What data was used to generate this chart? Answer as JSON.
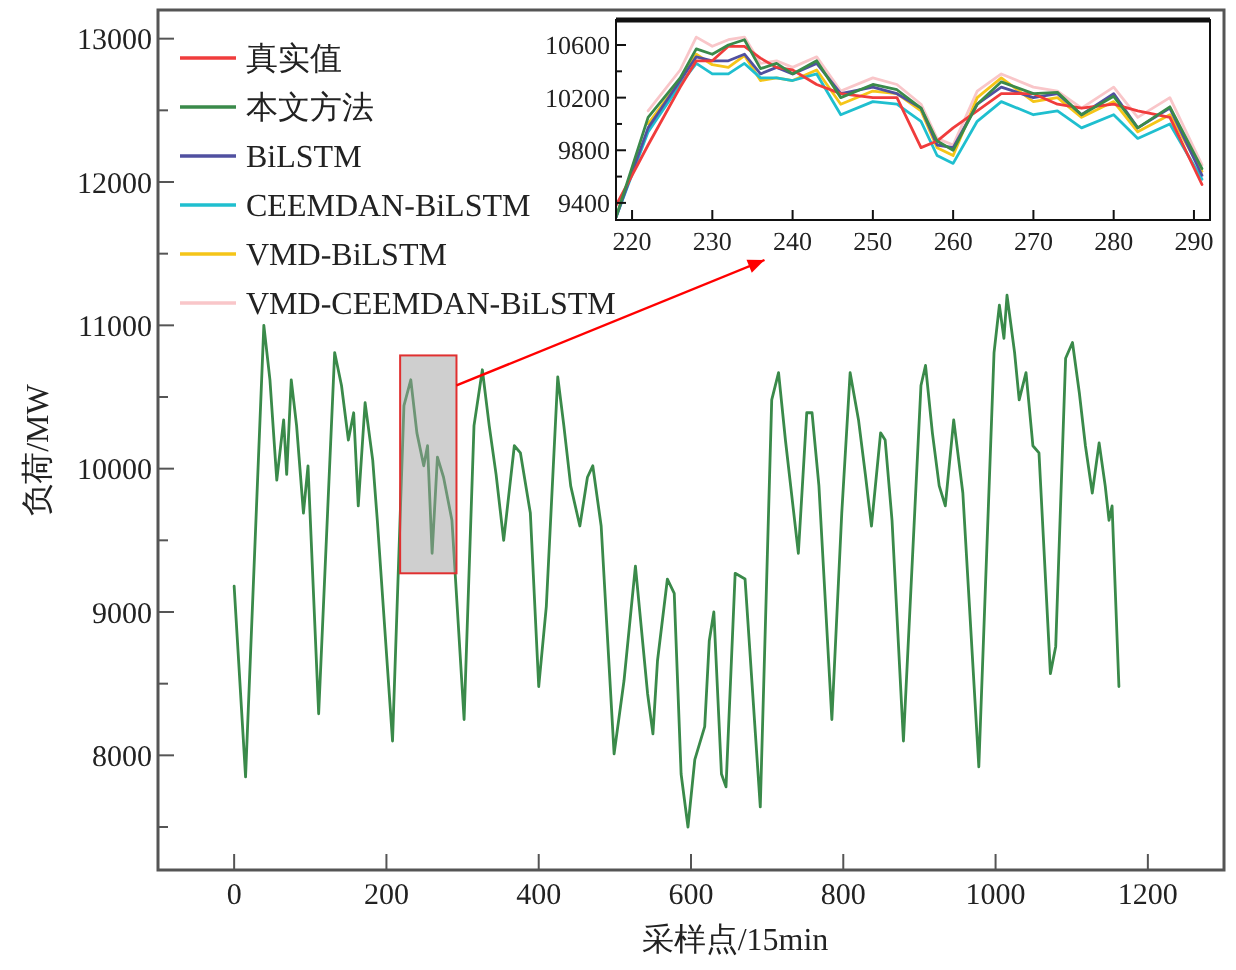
{
  "chart_data": [
    {
      "type": "line",
      "xlabel": "采样点/15min",
      "ylabel": "负荷/MW",
      "legend": "top left",
      "xlim": [
        -100,
        1300
      ],
      "ylim": [
        7200,
        13200
      ],
      "xticks": [
        0,
        200,
        400,
        600,
        800,
        1000,
        1200
      ],
      "yticks": [
        {
          "value": 7500,
          "label": null
        },
        8000,
        {
          "value": 8500,
          "label": null
        },
        9000,
        {
          "value": 9500,
          "label": null
        },
        10000,
        {
          "value": 10500,
          "label": null
        },
        11000,
        {
          "value": 11500,
          "label": null
        },
        12000,
        {
          "value": 12500,
          "label": null
        },
        13000
      ],
      "x": [
        0,
        15,
        39,
        47,
        56,
        65,
        69,
        75,
        82,
        91,
        97,
        111,
        132,
        141,
        150,
        157,
        163,
        172,
        182,
        188,
        208,
        223,
        232,
        240,
        249,
        254,
        260,
        267,
        275,
        286,
        302,
        315,
        326,
        335,
        344,
        354,
        368,
        376,
        389,
        400,
        410,
        425,
        433,
        442,
        454,
        464,
        471,
        482,
        499,
        512,
        527,
        543,
        550,
        556,
        569,
        578,
        587,
        596,
        605,
        618,
        624,
        630,
        640,
        646,
        658,
        671,
        691,
        706,
        715,
        724,
        741,
        752,
        759,
        768,
        785,
        798,
        809,
        820,
        829,
        837,
        849,
        855,
        864,
        879,
        902,
        908,
        917,
        926,
        934,
        945,
        957,
        978,
        998,
        1005,
        1011,
        1015,
        1025,
        1031,
        1040,
        1049,
        1057,
        1072,
        1079,
        1092,
        1101,
        1110,
        1118,
        1127,
        1136,
        1144,
        1149,
        1153,
        1162
      ],
      "series": [
        {
          "name": "真实值",
          "color": "#f03c3c",
          "values": [
            null,
            null,
            null,
            null,
            null,
            null,
            null,
            null,
            null,
            null,
            null,
            null,
            null,
            null,
            null,
            null,
            null,
            null,
            null,
            null,
            null,
            null,
            null,
            null,
            null,
            null,
            null,
            null,
            null,
            null,
            null,
            null,
            null,
            null,
            null,
            null,
            null,
            null,
            null,
            null,
            null,
            null,
            null,
            null,
            null,
            null,
            null,
            null,
            null,
            null,
            null,
            null,
            null,
            null,
            null,
            null,
            null,
            null,
            null,
            null,
            null,
            null,
            null,
            null,
            null,
            null,
            null,
            null,
            null,
            null,
            null,
            null,
            null,
            null,
            null,
            null,
            null,
            null,
            null,
            null,
            null,
            null,
            null,
            null,
            null,
            null,
            null,
            null,
            null,
            null,
            null,
            null,
            null,
            null,
            null,
            null,
            null,
            null,
            null,
            null,
            null,
            null,
            null,
            null,
            null,
            null,
            null,
            null,
            null,
            null,
            null,
            null,
            null
          ]
        },
        {
          "name": "本文方法",
          "color": "#3a8a4a",
          "values": [
            9180,
            7850,
            11000,
            10620,
            9920,
            10340,
            9960,
            10620,
            10300,
            9690,
            10020,
            8290,
            10810,
            10580,
            10200,
            10390,
            9740,
            10460,
            10060,
            9640,
            8100,
            10440,
            10620,
            10250,
            10020,
            10160,
            9410,
            10080,
            9940,
            9640,
            8250,
            10300,
            10690,
            10300,
            9960,
            9500,
            10160,
            10110,
            9690,
            8480,
            9040,
            10640,
            10300,
            9880,
            9600,
            9940,
            10020,
            9600,
            8010,
            8520,
            9320,
            8430,
            8150,
            8660,
            9230,
            9130,
            7870,
            7500,
            7970,
            8200,
            8800,
            9000,
            7870,
            7780,
            9270,
            9230,
            7640,
            10480,
            10670,
            10200,
            9410,
            10390,
            10390,
            9880,
            8250,
            9690,
            10670,
            10340,
            9960,
            9600,
            10250,
            10200,
            9640,
            8100,
            10580,
            10720,
            10250,
            9880,
            9740,
            10340,
            9830,
            7920,
            10810,
            11140,
            10910,
            11210,
            10810,
            10480,
            10670,
            10160,
            10110,
            8570,
            8760,
            10770,
            10880,
            10530,
            10160,
            9830,
            10180,
            9880,
            9640,
            9740,
            8480
          ]
        },
        {
          "name": "BiLSTM",
          "color": "#5050a0",
          "values": [
            null,
            null,
            null,
            null,
            null,
            null,
            null,
            null,
            null,
            null,
            null,
            null,
            null,
            null,
            null,
            null,
            null,
            null,
            null,
            null,
            null,
            null,
            null,
            null,
            null,
            null,
            null,
            null,
            null,
            null,
            null,
            null,
            null,
            null,
            null,
            null,
            null,
            null,
            null,
            null,
            null,
            null,
            null,
            null,
            null,
            null,
            null,
            null,
            null,
            null,
            null,
            null,
            null,
            null,
            null,
            null,
            null,
            null,
            null,
            null,
            null,
            null,
            null,
            null,
            null,
            null,
            null,
            null,
            null,
            null,
            null,
            null,
            null,
            null,
            null,
            null,
            null,
            null,
            null,
            null,
            null,
            null,
            null,
            null,
            null,
            null,
            null,
            null,
            null,
            null,
            null,
            null,
            null,
            null,
            null,
            null,
            null,
            null,
            null,
            null,
            null,
            null,
            null,
            null,
            null,
            null,
            null,
            null,
            null,
            null,
            null,
            null,
            null
          ]
        },
        {
          "name": "CEEMDAN-BiLSTM",
          "color": "#1fbfcf",
          "values": [
            null,
            null,
            null,
            null,
            null,
            null,
            null,
            null,
            null,
            null,
            null,
            null,
            null,
            null,
            null,
            null,
            null,
            null,
            null,
            null,
            null,
            null,
            null,
            null,
            null,
            null,
            null,
            null,
            null,
            null,
            null,
            null,
            null,
            null,
            null,
            null,
            null,
            null,
            null,
            null,
            null,
            null,
            null,
            null,
            null,
            null,
            null,
            null,
            null,
            null,
            null,
            null,
            null,
            null,
            null,
            null,
            null,
            null,
            null,
            null,
            null,
            null,
            null,
            null,
            null,
            null,
            null,
            null,
            null,
            null,
            null,
            null,
            null,
            null,
            null,
            null,
            null,
            null,
            null,
            null,
            null,
            null,
            null,
            null,
            null,
            null,
            null,
            null,
            null,
            null,
            null,
            null,
            null,
            null,
            null,
            null,
            null,
            null,
            null,
            null,
            null,
            null,
            null,
            null,
            null,
            null,
            null,
            null,
            null,
            null,
            null,
            null,
            null
          ]
        },
        {
          "name": "VMD-BiLSTM",
          "color": "#f5c518",
          "values": [
            null,
            null,
            null,
            null,
            null,
            null,
            null,
            null,
            null,
            null,
            null,
            null,
            null,
            null,
            null,
            null,
            null,
            null,
            null,
            null,
            null,
            null,
            null,
            null,
            null,
            null,
            null,
            null,
            null,
            null,
            null,
            null,
            null,
            null,
            null,
            null,
            null,
            null,
            null,
            null,
            null,
            null,
            null,
            null,
            null,
            null,
            null,
            null,
            null,
            null,
            null,
            null,
            null,
            null,
            null,
            null,
            null,
            null,
            null,
            null,
            null,
            null,
            null,
            null,
            null,
            null,
            null,
            null,
            null,
            null,
            null,
            null,
            null,
            null,
            null,
            null,
            null,
            null,
            null,
            null,
            null,
            null,
            null,
            null,
            null,
            null,
            null,
            null,
            null,
            null,
            null,
            null,
            null,
            null,
            null,
            null,
            null,
            null,
            null,
            null,
            null,
            null,
            null,
            null,
            null,
            null,
            null,
            null,
            null,
            null,
            null,
            null,
            null
          ]
        },
        {
          "name": "VMD-CEEMDAN-BiLSTM",
          "color": "#f9c6c9",
          "values": [
            null,
            null,
            null,
            null,
            null,
            null,
            null,
            null,
            null,
            null,
            null,
            null,
            null,
            null,
            null,
            null,
            null,
            null,
            null,
            null,
            null,
            null,
            null,
            null,
            null,
            null,
            null,
            null,
            null,
            null,
            null,
            null,
            null,
            null,
            null,
            null,
            null,
            null,
            null,
            null,
            null,
            null,
            null,
            null,
            null,
            null,
            null,
            null,
            null,
            null,
            null,
            null,
            null,
            null,
            null,
            null,
            null,
            null,
            null,
            null,
            null,
            null,
            null,
            null,
            null,
            null,
            null,
            null,
            null,
            null,
            null,
            null,
            null,
            null,
            null,
            null,
            null,
            null,
            null,
            null,
            null,
            null,
            null,
            null,
            null,
            null,
            null,
            null,
            null,
            null,
            null,
            null,
            null,
            null,
            null,
            null,
            null,
            null,
            null,
            null,
            null,
            null,
            null,
            null,
            null,
            null,
            null,
            null,
            null,
            null,
            null,
            null,
            null
          ]
        }
      ]
    },
    {
      "type": "line",
      "xlim": [
        218,
        292
      ],
      "ylim": [
        9270,
        10790
      ],
      "xticks": [
        220,
        230,
        240,
        250,
        260,
        270,
        280,
        290
      ],
      "yticks": [
        9400,
        {
          "value": 9600,
          "label": null
        },
        9800,
        {
          "value": 10000,
          "label": null
        },
        10200,
        {
          "value": 10400,
          "label": null
        },
        10600
      ],
      "x": [
        218,
        222,
        226,
        228,
        230,
        232,
        234,
        236,
        238,
        240,
        243,
        246,
        250,
        253,
        256,
        258,
        260,
        263,
        266,
        270,
        273,
        276,
        280,
        283,
        287,
        291
      ],
      "series": [
        {
          "color": "#f03c3c",
          "values": [
            9380,
            9840,
            10280,
            10480,
            10480,
            10590,
            10590,
            10500,
            10430,
            10410,
            10300,
            10230,
            10200,
            10200,
            9820,
            9870,
            9970,
            10100,
            10230,
            10230,
            10150,
            10120,
            10150,
            10100,
            10050,
            9540
          ]
        },
        {
          "color": "#3a8a4a",
          "values": [
            9290,
            10050,
            10350,
            10570,
            10530,
            10600,
            10640,
            10420,
            10460,
            10380,
            10480,
            10200,
            10300,
            10260,
            10120,
            9870,
            9800,
            10150,
            10320,
            10230,
            10240,
            10070,
            10210,
            9970,
            10130,
            9660
          ]
        },
        {
          "color": "#5050a0",
          "values": [
            9290,
            9970,
            10330,
            10510,
            10480,
            10480,
            10530,
            10380,
            10430,
            10380,
            10460,
            10230,
            10280,
            10230,
            10120,
            9840,
            9820,
            10150,
            10280,
            10200,
            10230,
            10070,
            10230,
            9970,
            10120,
            9610
          ]
        },
        {
          "color": "#1fbfcf",
          "values": [
            9290,
            9940,
            10300,
            10460,
            10380,
            10380,
            10460,
            10350,
            10350,
            10330,
            10380,
            10070,
            10170,
            10150,
            10020,
            9760,
            9700,
            10020,
            10170,
            10070,
            10100,
            9970,
            10070,
            9890,
            10000,
            9580
          ]
        },
        {
          "color": "#f5c518",
          "values": [
            null,
            10000,
            10330,
            10530,
            10450,
            10430,
            10520,
            10330,
            10350,
            10330,
            10410,
            10150,
            10250,
            10230,
            10100,
            9820,
            9760,
            10200,
            10350,
            10170,
            10200,
            10050,
            10170,
            9940,
            10070,
            9640
          ]
        },
        {
          "color": "#f9c6c9",
          "values": [
            null,
            10100,
            10410,
            10660,
            10590,
            10640,
            10660,
            10460,
            10480,
            10430,
            10510,
            10250,
            10350,
            10300,
            10150,
            9890,
            9840,
            10250,
            10380,
            10280,
            10250,
            10120,
            10280,
            10050,
            10200,
            9690
          ]
        }
      ]
    }
  ]
}
